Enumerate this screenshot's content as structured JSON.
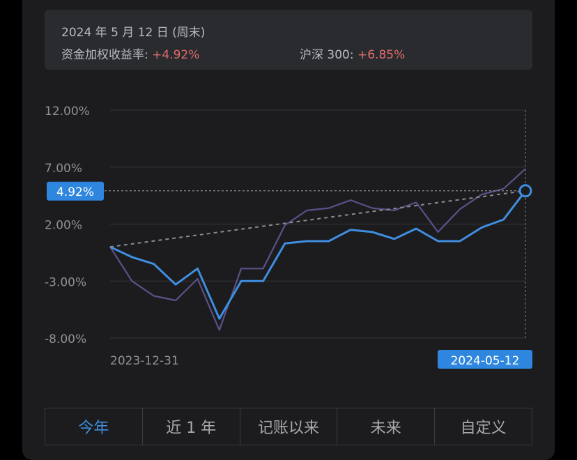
{
  "header": {
    "date": "2024 年 5 月 12 日 (周末)",
    "fund_label": "资金加权收益率:",
    "fund_value": "+4.92%",
    "index_label": "沪深 300:",
    "index_value": "+6.85%"
  },
  "tabs": [
    {
      "label": "今年",
      "active": true
    },
    {
      "label": "近 1 年",
      "active": false
    },
    {
      "label": "记账以来",
      "active": false
    },
    {
      "label": "未来",
      "active": false
    },
    {
      "label": "自定义",
      "active": false
    }
  ],
  "colors": {
    "fund": "#3f8ee0",
    "index": "#5a5288",
    "badge": "#2e86de"
  },
  "chart_data": {
    "type": "line",
    "x_start_label": "2023-12-31",
    "x_end_label": "2024-05-12",
    "y_ticks": [
      "12.00%",
      "7.00%",
      "2.00%",
      "-3.00%",
      "-8.00%"
    ],
    "ylim": [
      -8,
      12
    ],
    "current_value_label": "4.92%",
    "points": 20,
    "series": [
      {
        "values": [
          0.0,
          -0.9,
          -1.5,
          -3.3,
          -1.9,
          -6.3,
          -3.0,
          -3.0,
          0.3,
          0.5,
          0.5,
          1.5,
          1.3,
          0.7,
          1.6,
          0.5,
          0.5,
          1.7,
          2.4,
          4.92
        ]
      },
      {
        "values": [
          0.0,
          -3.0,
          -4.3,
          -4.7,
          -2.8,
          -7.3,
          -1.9,
          -1.9,
          1.9,
          3.2,
          3.4,
          4.1,
          3.4,
          3.2,
          3.9,
          1.3,
          3.3,
          4.6,
          5.1,
          6.85
        ]
      }
    ],
    "trend": {
      "from": 0.0,
      "to": 4.92
    }
  }
}
